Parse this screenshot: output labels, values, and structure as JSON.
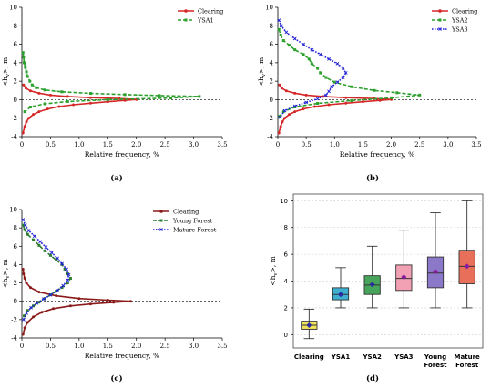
{
  "chart_data": [
    {
      "type": "line",
      "panel_label": "(a)",
      "xlabel": "Relative frequency, %",
      "ylabel": "<h",
      "ylabel_sub": "v",
      "ylabel_end": ">, m",
      "xlim": [
        0,
        3.5
      ],
      "ylim": [
        -4,
        10
      ],
      "xticks": [
        "0",
        "0.5",
        "1.0",
        "1.5",
        "2.0",
        "2.5",
        "3.0",
        "3.5"
      ],
      "yticks": [
        "-4",
        "-2",
        "0",
        "2",
        "4",
        "6",
        "8",
        "10"
      ],
      "legend_position": "top-right",
      "grid": false,
      "zero_line": true,
      "series": [
        {
          "name": "Clearing",
          "color": "#d62728",
          "marker": "o",
          "points": [
            [
              0.02,
              -3.6
            ],
            [
              0.05,
              -2.9
            ],
            [
              0.08,
              -2.4
            ],
            [
              0.12,
              -2.0
            ],
            [
              0.2,
              -1.6
            ],
            [
              0.3,
              -1.3
            ],
            [
              0.45,
              -1.0
            ],
            [
              0.65,
              -0.75
            ],
            [
              0.9,
              -0.55
            ],
            [
              1.2,
              -0.38
            ],
            [
              1.5,
              -0.22
            ],
            [
              1.8,
              -0.08
            ],
            [
              2.0,
              0.02
            ],
            [
              1.7,
              0.12
            ],
            [
              1.2,
              0.22
            ],
            [
              0.8,
              0.35
            ],
            [
              0.5,
              0.5
            ],
            [
              0.3,
              0.7
            ],
            [
              0.15,
              0.95
            ],
            [
              0.07,
              1.25
            ],
            [
              0.03,
              1.6
            ]
          ]
        },
        {
          "name": "YSA1",
          "color": "#2ca02c",
          "marker": "s",
          "points": [
            [
              0.02,
              5.1
            ],
            [
              0.03,
              4.6
            ],
            [
              0.04,
              4.0
            ],
            [
              0.06,
              3.5
            ],
            [
              0.08,
              3.0
            ],
            [
              0.1,
              2.5
            ],
            [
              0.14,
              2.0
            ],
            [
              0.18,
              1.6
            ],
            [
              0.25,
              1.3
            ],
            [
              0.4,
              1.05
            ],
            [
              0.7,
              0.85
            ],
            [
              1.2,
              0.68
            ],
            [
              1.8,
              0.55
            ],
            [
              2.4,
              0.45
            ],
            [
              3.1,
              0.35
            ],
            [
              2.6,
              0.18
            ],
            [
              1.5,
              0.0
            ],
            [
              0.8,
              -0.2
            ],
            [
              0.4,
              -0.45
            ],
            [
              0.15,
              -0.8
            ],
            [
              0.05,
              -1.3
            ]
          ]
        }
      ]
    },
    {
      "type": "line",
      "panel_label": "(b)",
      "xlabel": "Relative frequency, %",
      "ylabel": "<h",
      "ylabel_sub": "v",
      "ylabel_end": ">, m",
      "xlim": [
        0,
        3.5
      ],
      "ylim": [
        -4,
        10
      ],
      "xticks": [
        "0",
        "0.5",
        "1.0",
        "1.5",
        "2.0",
        "2.5",
        "3.0",
        "3.5"
      ],
      "yticks": [
        "-4",
        "-2",
        "0",
        "2",
        "4",
        "6",
        "8",
        "10"
      ],
      "legend_position": "top-right",
      "grid": false,
      "zero_line": true,
      "series": [
        {
          "name": "Clearing",
          "color": "#d62728",
          "marker": "o",
          "points": [
            [
              0.02,
              -3.6
            ],
            [
              0.05,
              -2.9
            ],
            [
              0.08,
              -2.4
            ],
            [
              0.12,
              -2.0
            ],
            [
              0.2,
              -1.6
            ],
            [
              0.3,
              -1.3
            ],
            [
              0.45,
              -1.0
            ],
            [
              0.65,
              -0.75
            ],
            [
              0.9,
              -0.55
            ],
            [
              1.2,
              -0.38
            ],
            [
              1.5,
              -0.22
            ],
            [
              1.8,
              -0.08
            ],
            [
              2.0,
              0.02
            ],
            [
              1.7,
              0.12
            ],
            [
              1.2,
              0.22
            ],
            [
              0.8,
              0.35
            ],
            [
              0.5,
              0.5
            ],
            [
              0.3,
              0.7
            ],
            [
              0.15,
              0.95
            ],
            [
              0.07,
              1.25
            ],
            [
              0.03,
              1.6
            ]
          ]
        },
        {
          "name": "YSA2",
          "color": "#2ca02c",
          "marker": "s",
          "points": [
            [
              0.02,
              7.6
            ],
            [
              0.05,
              7.0
            ],
            [
              0.1,
              6.4
            ],
            [
              0.2,
              5.9
            ],
            [
              0.3,
              5.4
            ],
            [
              0.45,
              4.9
            ],
            [
              0.55,
              4.4
            ],
            [
              0.6,
              3.9
            ],
            [
              0.7,
              3.4
            ],
            [
              0.75,
              2.9
            ],
            [
              0.85,
              2.4
            ],
            [
              1.0,
              1.9
            ],
            [
              1.3,
              1.4
            ],
            [
              1.7,
              1.0
            ],
            [
              2.1,
              0.75
            ],
            [
              2.5,
              0.5
            ],
            [
              2.0,
              0.2
            ],
            [
              1.3,
              -0.1
            ],
            [
              0.7,
              -0.4
            ],
            [
              0.3,
              -0.8
            ],
            [
              0.1,
              -1.3
            ],
            [
              0.03,
              -1.8
            ]
          ]
        },
        {
          "name": "YSA3",
          "color": "#1f1fd6",
          "marker": "x",
          "points": [
            [
              0.02,
              8.6
            ],
            [
              0.06,
              8.0
            ],
            [
              0.15,
              7.3
            ],
            [
              0.3,
              6.6
            ],
            [
              0.45,
              6.0
            ],
            [
              0.6,
              5.4
            ],
            [
              0.75,
              4.9
            ],
            [
              0.9,
              4.4
            ],
            [
              1.05,
              3.9
            ],
            [
              1.15,
              3.4
            ],
            [
              1.2,
              2.9
            ],
            [
              1.15,
              2.4
            ],
            [
              1.05,
              1.9
            ],
            [
              0.95,
              1.4
            ],
            [
              0.9,
              0.9
            ],
            [
              0.85,
              0.5
            ],
            [
              0.7,
              0.1
            ],
            [
              0.5,
              -0.3
            ],
            [
              0.3,
              -0.7
            ],
            [
              0.12,
              -1.2
            ],
            [
              0.04,
              -1.9
            ]
          ]
        }
      ]
    },
    {
      "type": "line",
      "panel_label": "(c)",
      "xlabel": "Relative frequency, %",
      "ylabel": "<h",
      "ylabel_sub": "v",
      "ylabel_end": ">, m",
      "xlim": [
        0,
        3.5
      ],
      "ylim": [
        -4,
        10
      ],
      "xticks": [
        "0",
        "0.5",
        "1.0",
        "1.5",
        "2.0",
        "2.5",
        "3.0",
        "3.5"
      ],
      "yticks": [
        "-4",
        "-2",
        "0",
        "2",
        "4",
        "6",
        "8",
        "10"
      ],
      "legend_position": "top-right",
      "grid": false,
      "zero_line": true,
      "series": [
        {
          "name": "Clearing",
          "color": "#8b1a1a",
          "marker": "o",
          "points": [
            [
              0.02,
              -3.6
            ],
            [
              0.05,
              -2.9
            ],
            [
              0.1,
              -2.3
            ],
            [
              0.2,
              -1.7
            ],
            [
              0.35,
              -1.2
            ],
            [
              0.55,
              -0.8
            ],
            [
              0.85,
              -0.5
            ],
            [
              1.2,
              -0.3
            ],
            [
              1.6,
              -0.12
            ],
            [
              1.9,
              0.0
            ],
            [
              1.5,
              0.12
            ],
            [
              1.0,
              0.3
            ],
            [
              0.6,
              0.6
            ],
            [
              0.3,
              1.0
            ],
            [
              0.15,
              1.5
            ],
            [
              0.08,
              2.0
            ],
            [
              0.05,
              2.5
            ],
            [
              0.03,
              3.0
            ],
            [
              0.02,
              3.5
            ]
          ]
        },
        {
          "name": "Young Forest",
          "color": "#2e7d32",
          "marker": "s",
          "points": [
            [
              0.02,
              8.3
            ],
            [
              0.05,
              7.8
            ],
            [
              0.1,
              7.3
            ],
            [
              0.2,
              6.7
            ],
            [
              0.3,
              6.1
            ],
            [
              0.4,
              5.5
            ],
            [
              0.5,
              5.0
            ],
            [
              0.6,
              4.5
            ],
            [
              0.7,
              4.0
            ],
            [
              0.75,
              3.5
            ],
            [
              0.8,
              3.0
            ],
            [
              0.85,
              2.5
            ],
            [
              0.8,
              2.0
            ],
            [
              0.7,
              1.5
            ],
            [
              0.6,
              1.1
            ],
            [
              0.5,
              0.7
            ],
            [
              0.4,
              0.3
            ],
            [
              0.3,
              -0.1
            ],
            [
              0.2,
              -0.5
            ],
            [
              0.1,
              -1.0
            ],
            [
              0.04,
              -1.6
            ]
          ]
        },
        {
          "name": "Mature Forest",
          "color": "#1f1fd6",
          "marker": "x",
          "points": [
            [
              0.02,
              8.9
            ],
            [
              0.06,
              8.3
            ],
            [
              0.12,
              7.7
            ],
            [
              0.22,
              7.1
            ],
            [
              0.32,
              6.5
            ],
            [
              0.42,
              5.9
            ],
            [
              0.52,
              5.3
            ],
            [
              0.62,
              4.7
            ],
            [
              0.7,
              4.1
            ],
            [
              0.78,
              3.5
            ],
            [
              0.82,
              2.9
            ],
            [
              0.8,
              2.3
            ],
            [
              0.72,
              1.7
            ],
            [
              0.62,
              1.2
            ],
            [
              0.5,
              0.7
            ],
            [
              0.38,
              0.25
            ],
            [
              0.26,
              -0.2
            ],
            [
              0.16,
              -0.7
            ],
            [
              0.08,
              -1.3
            ],
            [
              0.03,
              -2.0
            ]
          ]
        }
      ]
    },
    {
      "type": "box",
      "panel_label": "(d)",
      "ylabel": "<h",
      "ylabel_sub": "v",
      "ylabel_end": ">, m",
      "ylim": [
        -1,
        10.5
      ],
      "yticks": [
        "0",
        "2",
        "4",
        "6",
        "8",
        "10"
      ],
      "grid": true,
      "categories": [
        "Clearing",
        "YSA1",
        "YSA2",
        "YSA3",
        "Young Forest",
        "Mature Forest"
      ],
      "boxes": [
        {
          "label": "Clearing",
          "min": -0.3,
          "q1": 0.4,
          "median": 0.7,
          "q3": 1.0,
          "max": 1.9,
          "mean": 0.7,
          "color": "#f2e15b",
          "mean_color": "#2a2aa0"
        },
        {
          "label": "YSA1",
          "min": 2.0,
          "q1": 2.6,
          "median": 3.0,
          "q3": 3.5,
          "max": 5.0,
          "mean": 3.0,
          "color": "#3fb0d0",
          "mean_color": "#2a2aa0"
        },
        {
          "label": "YSA2",
          "min": 2.0,
          "q1": 3.0,
          "median": 3.7,
          "q3": 4.4,
          "max": 6.6,
          "mean": 3.75,
          "color": "#46a55a",
          "mean_color": "#2a2aa0"
        },
        {
          "label": "YSA3",
          "min": 2.0,
          "q1": 3.3,
          "median": 4.2,
          "q3": 5.2,
          "max": 7.8,
          "mean": 4.3,
          "color": "#f2a0b4",
          "mean_color": "#8a1aa0"
        },
        {
          "label": "Young Forest",
          "min": 2.0,
          "q1": 3.5,
          "median": 4.6,
          "q3": 5.8,
          "max": 9.1,
          "mean": 4.7,
          "color": "#8c78c8",
          "mean_color": "#8a1aa0"
        },
        {
          "label": "Mature Forest",
          "min": 2.0,
          "q1": 3.8,
          "median": 5.1,
          "q3": 6.3,
          "max": 10.0,
          "mean": 5.1,
          "color": "#e8705a",
          "mean_color": "#8a1aa0"
        }
      ]
    }
  ]
}
